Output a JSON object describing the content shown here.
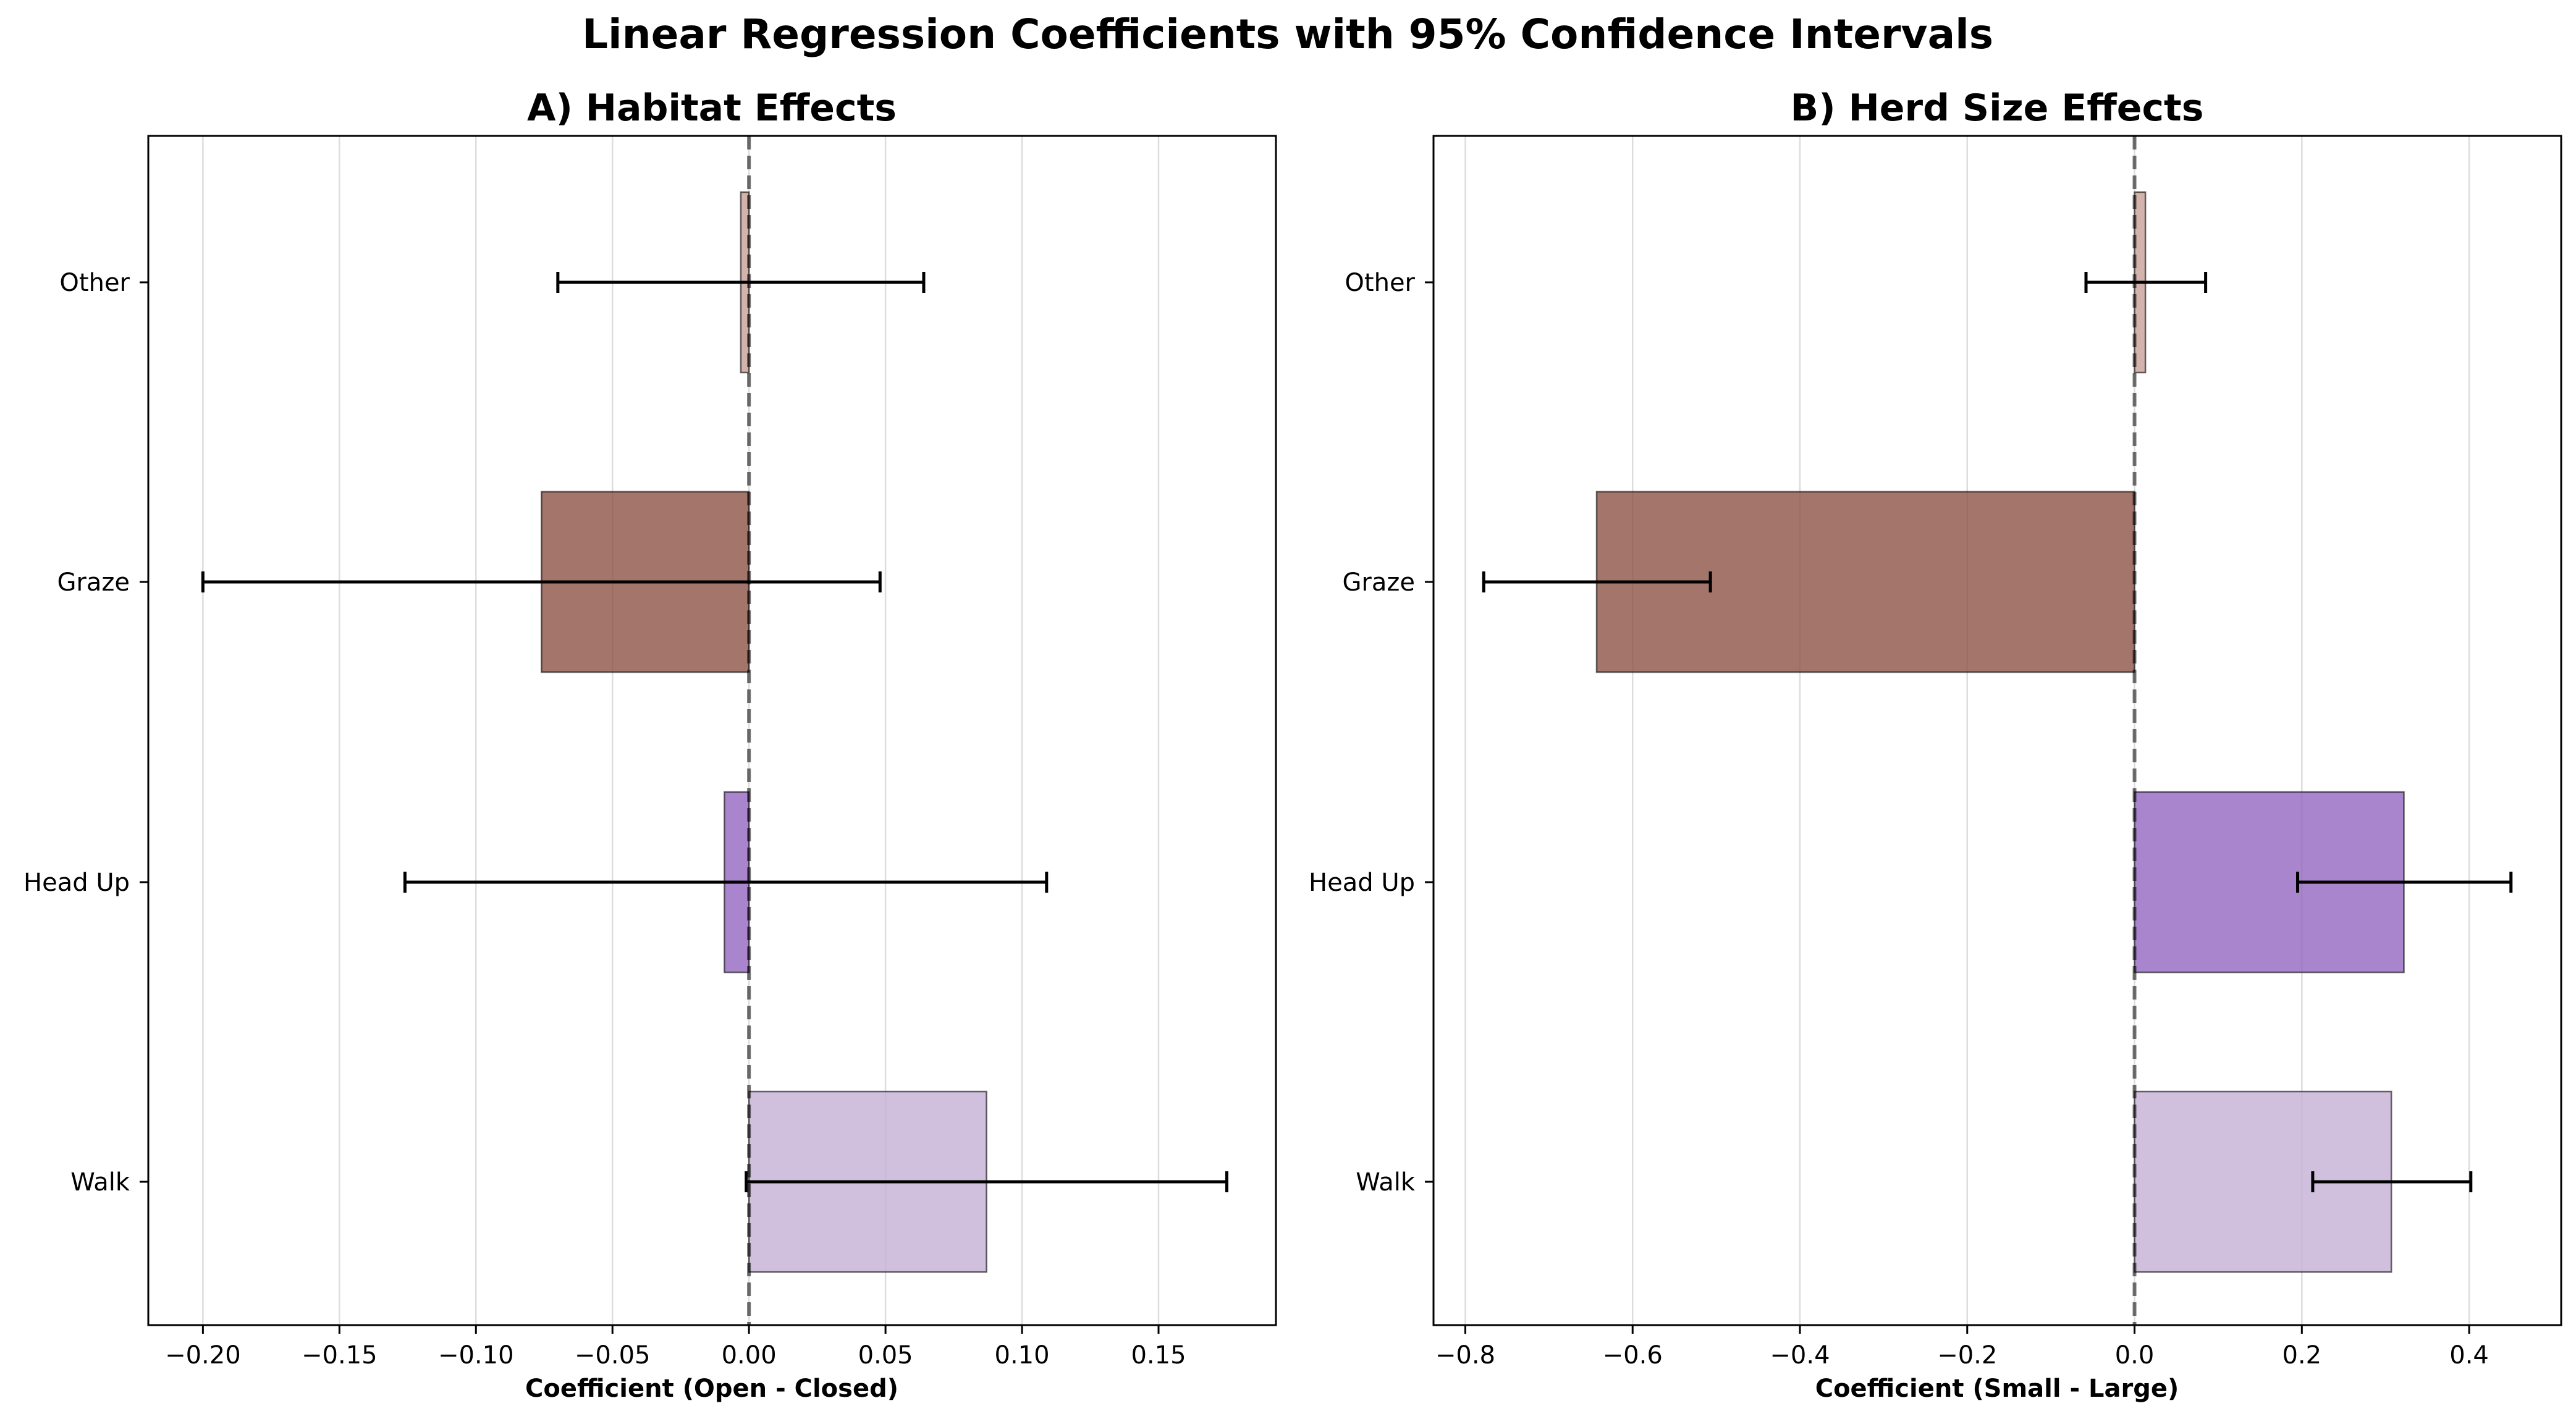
{
  "figure": {
    "title": "Linear Regression Coefficients with 95% Confidence Intervals"
  },
  "chart_data": [
    {
      "type": "bar",
      "orientation": "horizontal",
      "title": "A) Habitat Effects",
      "xlabel": "Coefficient (Open - Closed)",
      "ylabel": "",
      "categories": [
        "Other",
        "Graze",
        "Head Up",
        "Walk"
      ],
      "values": [
        -0.003,
        -0.076,
        -0.009,
        0.087
      ],
      "ci_low": [
        -0.07,
        -0.2,
        -0.126,
        -0.001
      ],
      "ci_high": [
        0.064,
        0.048,
        0.109,
        0.175
      ],
      "colors": [
        "#c8a096",
        "#8c5346",
        "#9466c0",
        "#c5b0d5"
      ],
      "xlim": [
        -0.22,
        0.193
      ],
      "xticks": [
        -0.2,
        -0.15,
        -0.1,
        -0.05,
        0.0,
        0.05,
        0.1,
        0.15
      ],
      "xtick_labels": [
        "−0.20",
        "−0.15",
        "−0.10",
        "−0.05",
        "0.00",
        "0.05",
        "0.10",
        "0.15"
      ],
      "grid": "vertical",
      "reference_line": 0
    },
    {
      "type": "bar",
      "orientation": "horizontal",
      "title": "B) Herd Size Effects",
      "xlabel": "Coefficient (Small - Large)",
      "ylabel": "",
      "categories": [
        "Other",
        "Graze",
        "Head Up",
        "Walk"
      ],
      "values": [
        0.013,
        -0.643,
        0.322,
        0.307
      ],
      "ci_low": [
        -0.058,
        -0.778,
        0.195,
        0.213
      ],
      "ci_high": [
        0.085,
        -0.507,
        0.45,
        0.402
      ],
      "colors": [
        "#c8a096",
        "#8c5346",
        "#9466c0",
        "#c5b0d5"
      ],
      "xlim": [
        -0.838,
        0.51
      ],
      "xticks": [
        -0.8,
        -0.6,
        -0.4,
        -0.2,
        0.0,
        0.2,
        0.4
      ],
      "xtick_labels": [
        "−0.8",
        "−0.6",
        "−0.4",
        "−0.2",
        "0.0",
        "0.2",
        "0.4"
      ],
      "grid": "vertical",
      "reference_line": 0
    }
  ]
}
